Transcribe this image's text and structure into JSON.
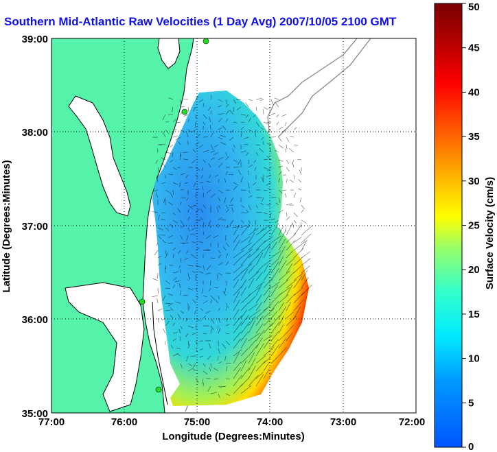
{
  "title": "Southern Mid-Atlantic Raw Velocities (1 Day Avg) 2007/10/05 2100 GMT",
  "xlabel": "Longitude (Degrees:Minutes)",
  "ylabel": "Latitude (Degrees:Minutes)",
  "xticks": [
    "77:00",
    "76:00",
    "75:00",
    "74:00",
    "73:00",
    "72:00"
  ],
  "yticks": [
    "39:00",
    "38:00",
    "37:00",
    "36:00",
    "35:00"
  ],
  "colorbar": {
    "label": "Surface Velocity (cm/s)",
    "ticks": [
      "0",
      "5",
      "10",
      "15",
      "20",
      "25",
      "30",
      "35",
      "40",
      "45",
      "50"
    ],
    "range": [
      0,
      50
    ]
  },
  "colors": {
    "land": "#55f2aa",
    "coast": "#000000",
    "water": "#ffffff",
    "title": "#1010e6",
    "station": "#22dd22"
  }
}
